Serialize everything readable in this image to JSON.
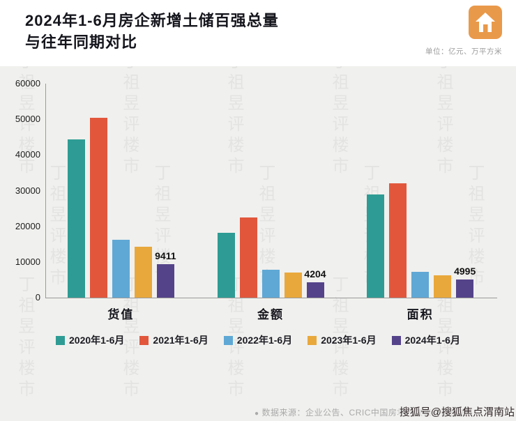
{
  "header": {
    "title_line1": "2024年1-6月房企新增土储百强总量",
    "title_line2": "与往年同期对比",
    "unit_note": "单位：亿元、万平方米"
  },
  "chart_data": {
    "type": "bar",
    "categories": [
      "货值",
      "金额",
      "面积"
    ],
    "series": [
      {
        "name": "2020年1-6月",
        "color": "#2E9C94",
        "values": [
          44300,
          18100,
          29000
        ]
      },
      {
        "name": "2021年1-6月",
        "color": "#E2573C",
        "values": [
          50500,
          22400,
          32000
        ]
      },
      {
        "name": "2022年1-6月",
        "color": "#5FA8D5",
        "values": [
          16200,
          7800,
          7300
        ]
      },
      {
        "name": "2023年1-6月",
        "color": "#E9A83B",
        "values": [
          14200,
          7000,
          6200
        ]
      },
      {
        "name": "2024年1-6月",
        "color": "#55438A",
        "values": [
          9411,
          4204,
          4995
        ]
      }
    ],
    "data_labels": [
      {
        "category": "货值",
        "value": "9411"
      },
      {
        "category": "金额",
        "value": "4204"
      },
      {
        "category": "面积",
        "value": "4995"
      }
    ],
    "ylim": [
      0,
      60000
    ],
    "yticks": [
      0,
      10000,
      20000,
      30000,
      40000,
      50000,
      60000
    ],
    "legend_position": "bottom",
    "grid": false
  },
  "footer": {
    "source_note": "数据来源：企业公告、CRIC中国房地产决策咨询系统",
    "sohu_watermark": "搜狐号@搜狐焦点渭南站"
  },
  "watermark": {
    "text": "丁祖昱评楼市"
  },
  "colors": {
    "logo_orange": "#E9994A",
    "panel_bg": "#F0F0EE",
    "title": "#15151D"
  }
}
